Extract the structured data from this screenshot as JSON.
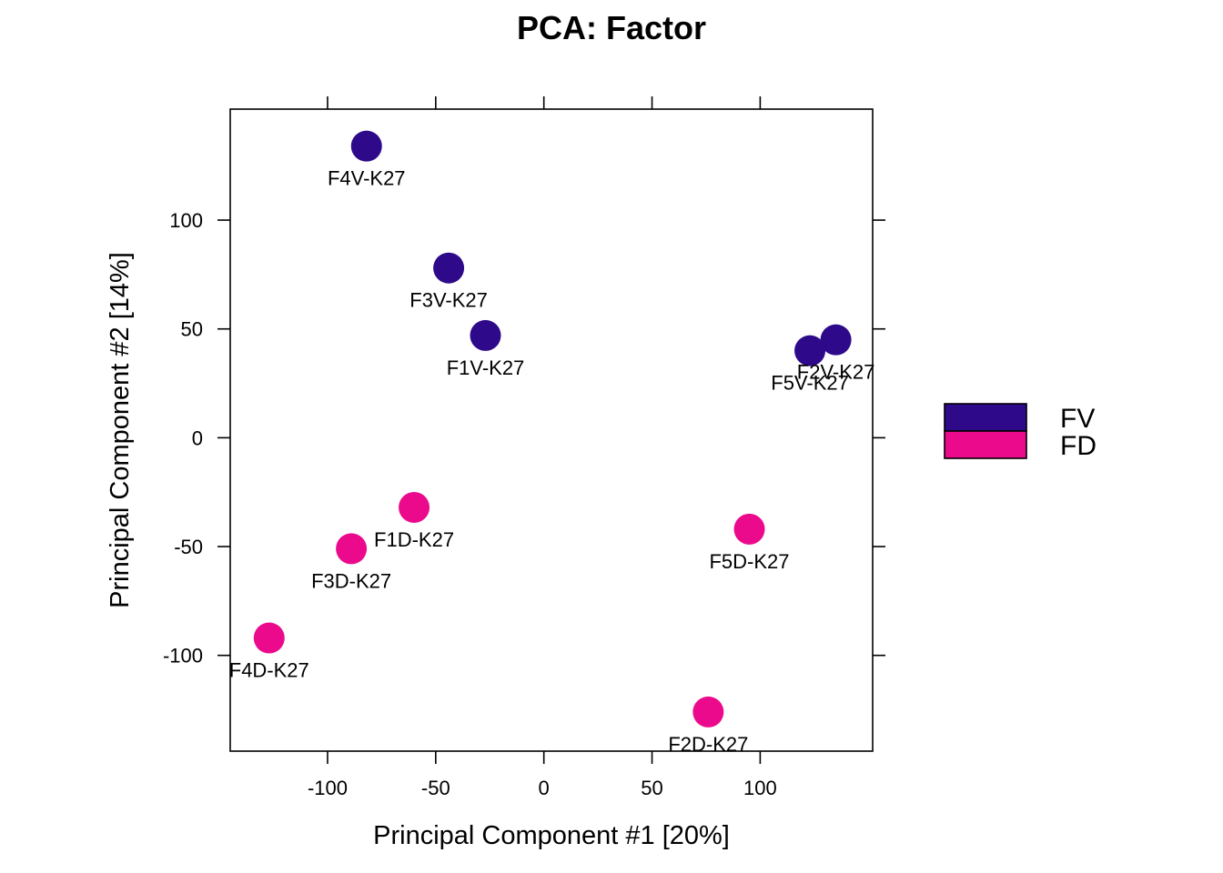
{
  "chart_data": {
    "type": "scatter",
    "title": "PCA: Factor",
    "xlabel": "Principal Component #1 [20%]",
    "ylabel": "Principal Component #2 [14%]",
    "xlim": [
      -145,
      152
    ],
    "ylim": [
      -144,
      151
    ],
    "xticks": [
      -100,
      -50,
      0,
      50,
      100
    ],
    "yticks": [
      -100,
      -50,
      0,
      50,
      100
    ],
    "xtick_labels": [
      "-100",
      "-50",
      "0",
      "50",
      "100"
    ],
    "ytick_labels": [
      "-100",
      "-50",
      "0",
      "50",
      "100"
    ],
    "grid": false,
    "legend": {
      "placement": "right",
      "entries": [
        {
          "name": "FV",
          "color": "#2e0a8a"
        },
        {
          "name": "FD",
          "color": "#ec0a8c"
        }
      ]
    },
    "series": [
      {
        "name": "FV",
        "color": "#2e0a8a",
        "points": [
          {
            "label": "F4V-K27",
            "x": -82,
            "y": 134
          },
          {
            "label": "F3V-K27",
            "x": -44,
            "y": 78
          },
          {
            "label": "F1V-K27",
            "x": -27,
            "y": 47
          },
          {
            "label": "F2V-K27",
            "x": 135,
            "y": 45
          },
          {
            "label": "F5V-K27",
            "x": 123,
            "y": 40
          }
        ]
      },
      {
        "name": "FD",
        "color": "#ec0a8c",
        "points": [
          {
            "label": "F1D-K27",
            "x": -60,
            "y": -32
          },
          {
            "label": "F3D-K27",
            "x": -89,
            "y": -51
          },
          {
            "label": "F4D-K27",
            "x": -127,
            "y": -92
          },
          {
            "label": "F5D-K27",
            "x": 95,
            "y": -42
          },
          {
            "label": "F2D-K27",
            "x": 76,
            "y": -126
          }
        ]
      }
    ]
  }
}
